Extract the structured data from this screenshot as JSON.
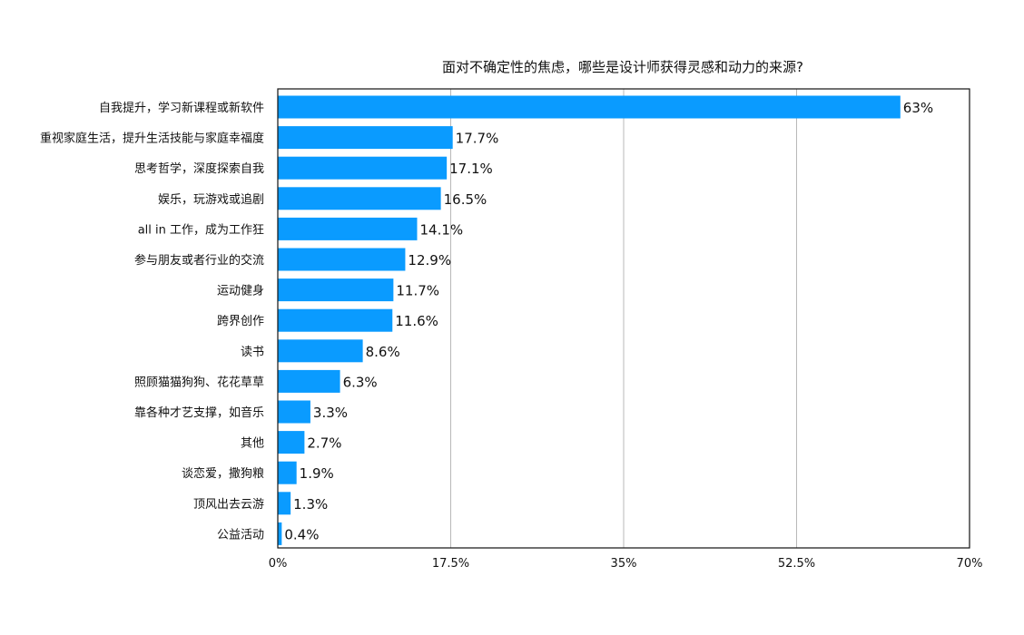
{
  "chart_data": {
    "type": "bar",
    "orientation": "horizontal",
    "title": "面对不确定性的焦虑，哪些是设计师获得灵感和动力的来源?",
    "xlabel": "",
    "ylabel": "",
    "xlim": [
      0,
      70
    ],
    "x_ticks": [
      0,
      17.5,
      35,
      52.5,
      70
    ],
    "x_tick_labels": [
      "0%",
      "17.5%",
      "35%",
      "52.5%",
      "70%"
    ],
    "grid": true,
    "bar_color": "#0a9bff",
    "categories": [
      "自我提升，学习新课程或新软件",
      "重视家庭生活，提升生活技能与家庭幸福度",
      "思考哲学，深度探索自我",
      "娱乐，玩游戏或追剧",
      "all in 工作，成为工作狂",
      "参与朋友或者行业的交流",
      "运动健身",
      "跨界创作",
      "读书",
      "照顾猫猫狗狗、花花草草",
      "靠各种才艺支撑，如音乐",
      "其他",
      "谈恋爱，撒狗粮",
      "顶风出去云游",
      "公益活动"
    ],
    "values": [
      63,
      17.7,
      17.1,
      16.5,
      14.1,
      12.9,
      11.7,
      11.6,
      8.6,
      6.3,
      3.3,
      2.7,
      1.9,
      1.3,
      0.4
    ],
    "value_labels": [
      "63%",
      "17.7%",
      "17.1%",
      "16.5%",
      "14.1%",
      "12.9%",
      "11.7%",
      "11.6%",
      "8.6%",
      "6.3%",
      "3.3%",
      "2.7%",
      "1.9%",
      "1.3%",
      "0.4%"
    ]
  }
}
